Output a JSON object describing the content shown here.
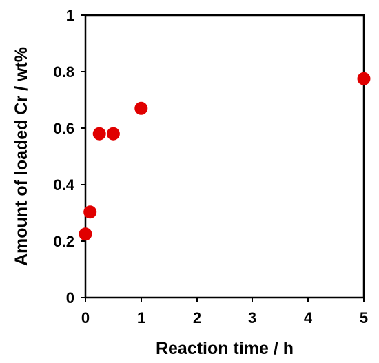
{
  "chart_data": {
    "type": "scatter",
    "xlabel": "Reaction time / h",
    "ylabel": "Amount of loaded Cr / wt%",
    "xlim": [
      0,
      5
    ],
    "ylim": [
      0,
      1
    ],
    "x_ticks": [
      "0",
      "1",
      "2",
      "3",
      "4",
      "5"
    ],
    "y_ticks": [
      "0",
      "0.2",
      "0.4",
      "0.6",
      "0.8",
      "1"
    ],
    "grid": false,
    "marker_color": "#e00000",
    "series": [
      {
        "x": [
          0,
          0.083,
          0.25,
          0.5,
          1,
          5
        ],
        "y": [
          0.225,
          0.303,
          0.58,
          0.58,
          0.67,
          0.775
        ]
      }
    ]
  }
}
